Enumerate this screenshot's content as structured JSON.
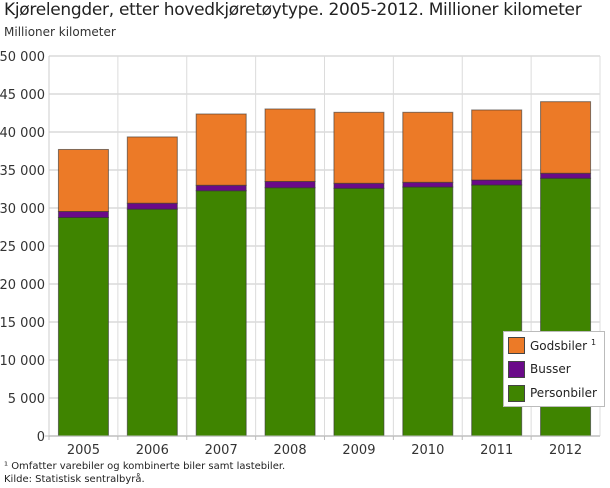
{
  "title": "Kjørelengder, etter hovedkjøretøytype. 2005-2012. Millioner kilometer",
  "subtitle": "Millioner kilometer",
  "footnotes": {
    "note1": "¹ Omfatter varebiler og kombinerte biler samt lastebiler.",
    "source": "Kilde: Statistisk sentralbyrå."
  },
  "legend": {
    "items": [
      {
        "label": "Godsbiler",
        "sup": "1",
        "color": "#ec7a27"
      },
      {
        "label": "Busser",
        "sup": "",
        "color": "#6a0a89"
      },
      {
        "label": "Personbiler",
        "sup": "",
        "color": "#3f8400"
      }
    ]
  },
  "chart_data": {
    "type": "bar",
    "stacked": true,
    "title": "Kjørelengder, etter hovedkjøretøytype. 2005-2012. Millioner kilometer",
    "xlabel": "",
    "ylabel": "Millioner kilometer",
    "ylim": [
      0,
      50000
    ],
    "yticks": [
      0,
      5000,
      10000,
      15000,
      20000,
      25000,
      30000,
      35000,
      40000,
      45000,
      50000
    ],
    "ytick_labels": [
      "0",
      "5 000",
      "10 000",
      "15 000",
      "20 000",
      "25 000",
      "30 000",
      "35 000",
      "40 000",
      "45 000",
      "50 000"
    ],
    "grid": true,
    "legend_position": "lower right, inside",
    "categories": [
      "2005",
      "2006",
      "2007",
      "2008",
      "2009",
      "2010",
      "2011",
      "2012"
    ],
    "series": [
      {
        "name": "Personbiler",
        "color": "#3f8400",
        "values": [
          28750,
          29850,
          32270,
          32670,
          32590,
          32760,
          33030,
          33910
        ]
      },
      {
        "name": "Busser",
        "color": "#6a0a89",
        "values": [
          790,
          780,
          720,
          820,
          660,
          620,
          650,
          660
        ]
      },
      {
        "name": "Godsbiler ¹",
        "color": "#ec7a27",
        "values": [
          8160,
          8720,
          9380,
          9540,
          9340,
          9210,
          9220,
          9420
        ]
      }
    ],
    "totals": [
      37700,
      39350,
      42370,
      43030,
      42590,
      42590,
      42900,
      43990
    ]
  }
}
